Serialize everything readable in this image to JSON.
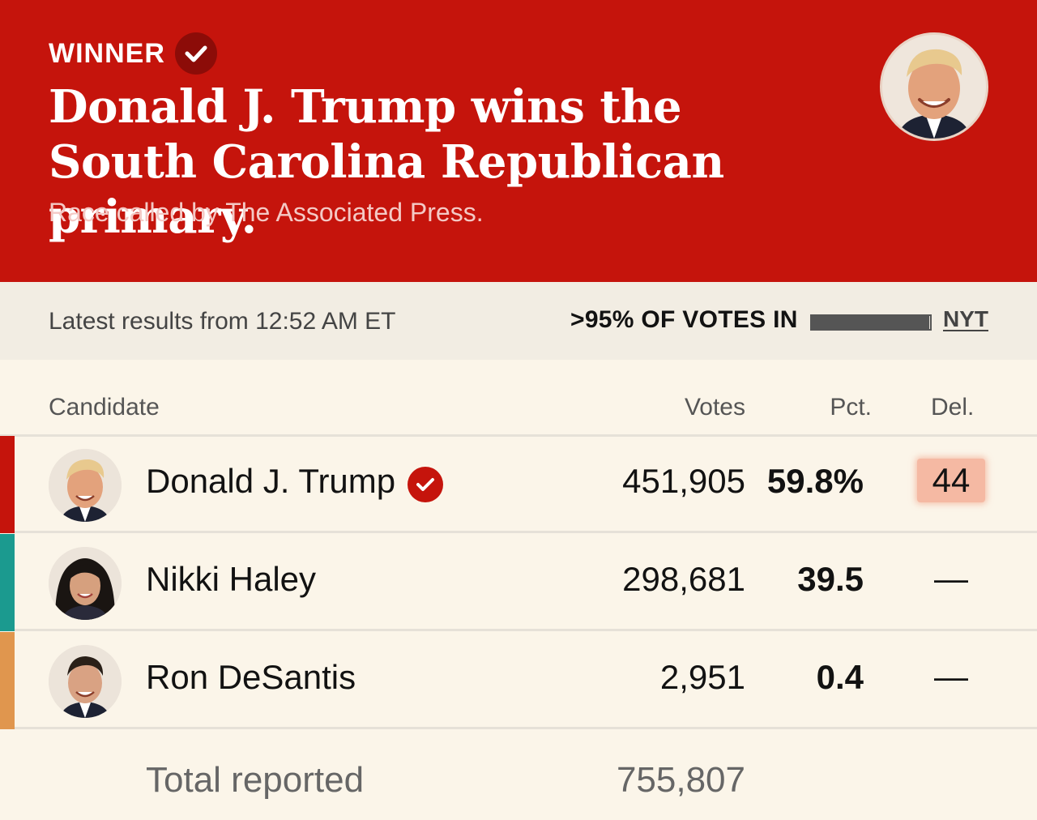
{
  "banner": {
    "winner_label": "WINNER",
    "headline": "Donald J. Trump wins the South Carolina Republican primary.",
    "subline": "Race called by The Associated Press.",
    "bg_color": "#c5140c"
  },
  "status": {
    "latest": "Latest results from 12:52 AM ET",
    "votes_in": ">95% OF VOTES IN",
    "progress_fraction": 0.99,
    "source_link": "NYT"
  },
  "table": {
    "headers": {
      "candidate": "Candidate",
      "votes": "Votes",
      "pct": "Pct.",
      "del": "Del."
    },
    "rows": [
      {
        "name": "Donald J. Trump",
        "votes": "451,905",
        "pct": "59.8%",
        "del": "44",
        "winner": true,
        "color": "#c5140c"
      },
      {
        "name": "Nikki Haley",
        "votes": "298,681",
        "pct": "39.5",
        "del": "—",
        "winner": false,
        "color": "#1b9a8f"
      },
      {
        "name": "Ron DeSantis",
        "votes": "2,951",
        "pct": "0.4",
        "del": "—",
        "winner": false,
        "color": "#e0964e"
      }
    ],
    "total_label": "Total reported",
    "total_votes": "755,807"
  }
}
